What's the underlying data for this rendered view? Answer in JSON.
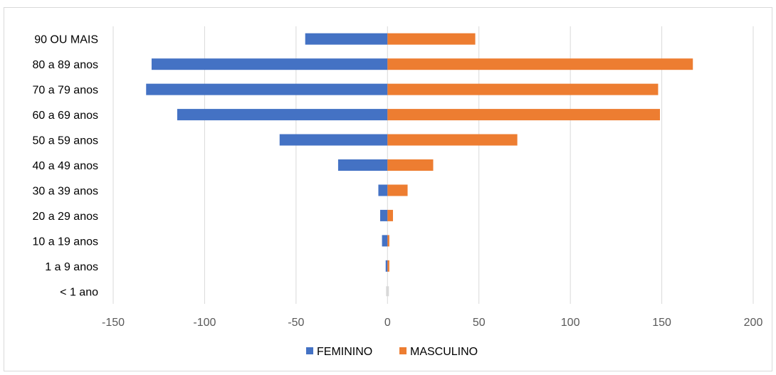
{
  "chart_data": {
    "type": "bar",
    "orientation": "horizontal",
    "stacked": true,
    "title": "",
    "xlabel": "",
    "ylabel": "",
    "categories": [
      "90 OU MAIS",
      "80 a 89 anos",
      "70 a 79 anos",
      "60 a 69 anos",
      "50 a 59 anos",
      "40 a 49 anos",
      "30 a 39 anos",
      "20 a 29 anos",
      "10 a 19 anos",
      "1 a 9 anos",
      "< 1 ano"
    ],
    "series": [
      {
        "name": "FEMININO",
        "color": "#4472C4",
        "values": [
          -45,
          -129,
          -132,
          -115,
          -59,
          -27,
          -5,
          -4,
          -3,
          -1,
          0
        ]
      },
      {
        "name": "MASCULINO",
        "color": "#ED7D31",
        "values": [
          48,
          167,
          148,
          149,
          71,
          25,
          11,
          3,
          1,
          1,
          0
        ]
      }
    ],
    "xlim": [
      -150,
      200
    ],
    "xticks": [
      -150,
      -100,
      -50,
      0,
      50,
      100,
      150,
      200
    ],
    "xtick_labels": [
      "-150",
      "-100",
      "-50",
      "0",
      "50",
      "100",
      "150",
      "200"
    ],
    "grid": "vertical",
    "legend_position": "bottom",
    "gridline_color": "#d9d9d9"
  }
}
